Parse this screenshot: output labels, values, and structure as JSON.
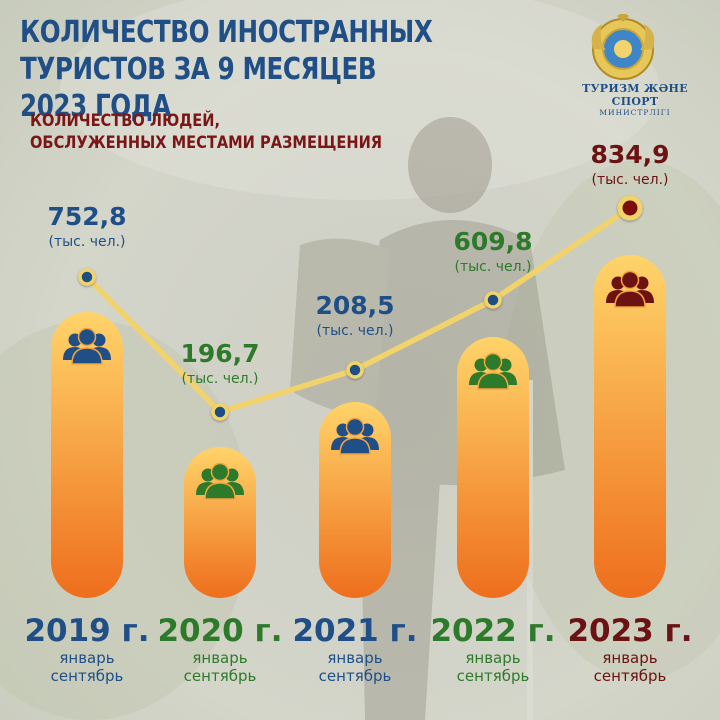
{
  "header": {
    "title_line1": "КОЛИЧЕСТВО ИНОСТРАННЫХ",
    "title_line2": "ТУРИСТОВ ЗА 9 МЕСЯЦЕВ 2023 ГОДА",
    "subtitle_line1": "КОЛИЧЕСТВО ЛЮДЕЙ,",
    "subtitle_line2": "ОБСЛУЖЕННЫХ МЕСТАМИ РАЗМЕЩЕНИЯ"
  },
  "logo": {
    "icon": "state-emblem-icon",
    "line1": "ТУРИЗМ ЖӘНЕ СПОРТ",
    "line2": "МИНИСТРЛІГІ"
  },
  "colors": {
    "blue": "#1f4f86",
    "green": "#2e7a2b",
    "maroon": "#6b1212",
    "line": "#f2d36b",
    "bar_top": "#ffd46a",
    "bar_bottom": "#ee6e1c"
  },
  "chart_data": {
    "type": "bar",
    "title": "КОЛИЧЕСТВО ИНОСТРАННЫХ ТУРИСТОВ ЗА 9 МЕСЯЦЕВ 2023 ГОДА",
    "subtitle": "КОЛИЧЕСТВО ЛЮДЕЙ, ОБСЛУЖЕННЫХ МЕСТАМИ РАЗМЕЩЕНИЯ",
    "unit": "(тыс. чел.)",
    "categories": [
      "2019 г.",
      "2020 г.",
      "2021 г.",
      "2022 г.",
      "2023 г."
    ],
    "period_line1": "январь",
    "period_line2": "сентябрь",
    "values": [
      752.8,
      196.7,
      208.5,
      609.8,
      834.9
    ],
    "value_labels": [
      "752,8",
      "196,7",
      "208,5",
      "609,8",
      "834,9"
    ],
    "category_colors": [
      "blue",
      "green",
      "blue",
      "green",
      "maroon"
    ],
    "icon": "people-group-icon",
    "overlay": "line",
    "grid": false,
    "legend": "none"
  }
}
